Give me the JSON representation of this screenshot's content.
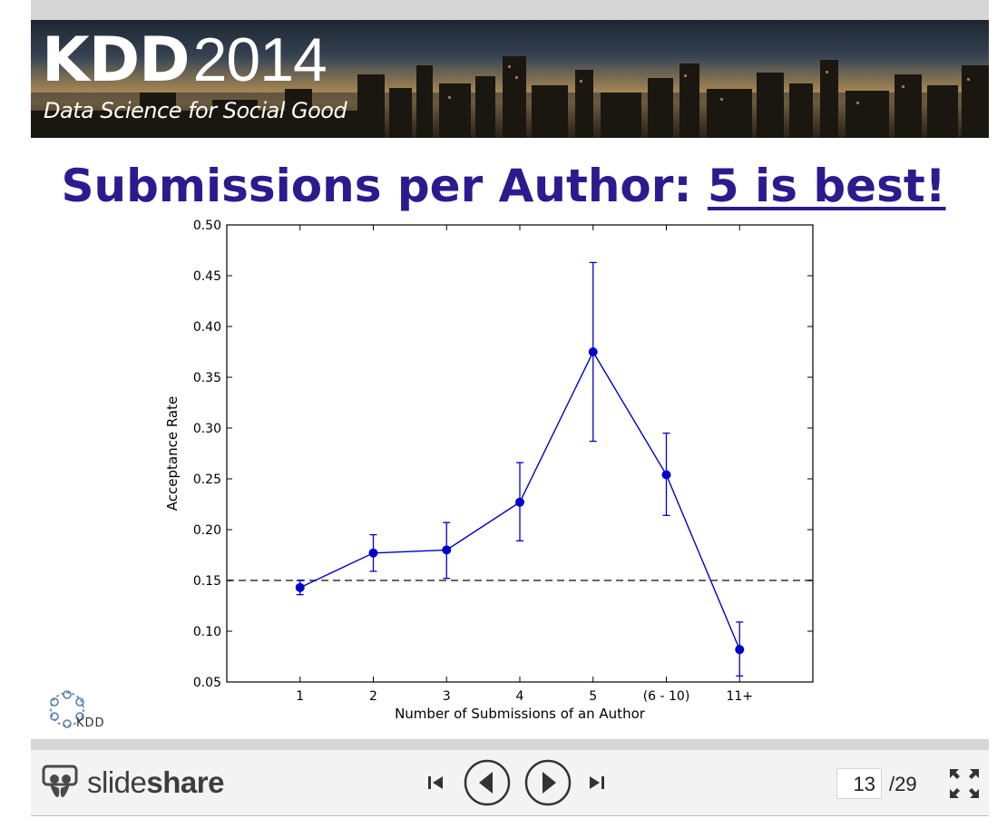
{
  "banner": {
    "title_kdd": "KDD",
    "title_year": "2014",
    "subtitle": "Data Science for Social Good"
  },
  "slide": {
    "title_main": "Submissions per Author: ",
    "title_emphasis": "5 is best!"
  },
  "chart_data": {
    "type": "line",
    "title": "",
    "xlabel": "Number of Submissions of an Author",
    "ylabel": "Acceptance Rate",
    "categories": [
      "1",
      "2",
      "3",
      "4",
      "5",
      "(6 - 10)",
      "11+"
    ],
    "series": [
      {
        "values": [
          0.143,
          0.177,
          0.18,
          0.227,
          0.375,
          0.254,
          0.082
        ],
        "error_low": [
          0.136,
          0.159,
          0.152,
          0.189,
          0.287,
          0.214,
          0.056
        ],
        "error_high": [
          0.15,
          0.195,
          0.207,
          0.266,
          0.463,
          0.295,
          0.109
        ],
        "color": "#0000cc"
      }
    ],
    "reference_line": {
      "y": 0.15,
      "style": "dashed",
      "color": "#666666"
    },
    "ylim": [
      0.05,
      0.5
    ],
    "yticks": [
      "0.05",
      "0.10",
      "0.15",
      "0.20",
      "0.25",
      "0.30",
      "0.35",
      "0.40",
      "0.45",
      "0.50"
    ],
    "xlim": [
      0,
      8
    ],
    "grid": false
  },
  "logo": {
    "label": "KDD"
  },
  "toolbar": {
    "brand_light": "slide",
    "brand_bold": "share",
    "current_page": "13",
    "total_pages": "/29"
  },
  "icons": {
    "first": "skip-first-icon",
    "prev": "previous-icon",
    "next": "next-icon",
    "last": "skip-last-icon",
    "fullscreen": "fullscreen-icon"
  },
  "colors": {
    "title": "#2b1b8f",
    "series": "#0000cc",
    "toolbar_bg": "#f3f3f3"
  }
}
